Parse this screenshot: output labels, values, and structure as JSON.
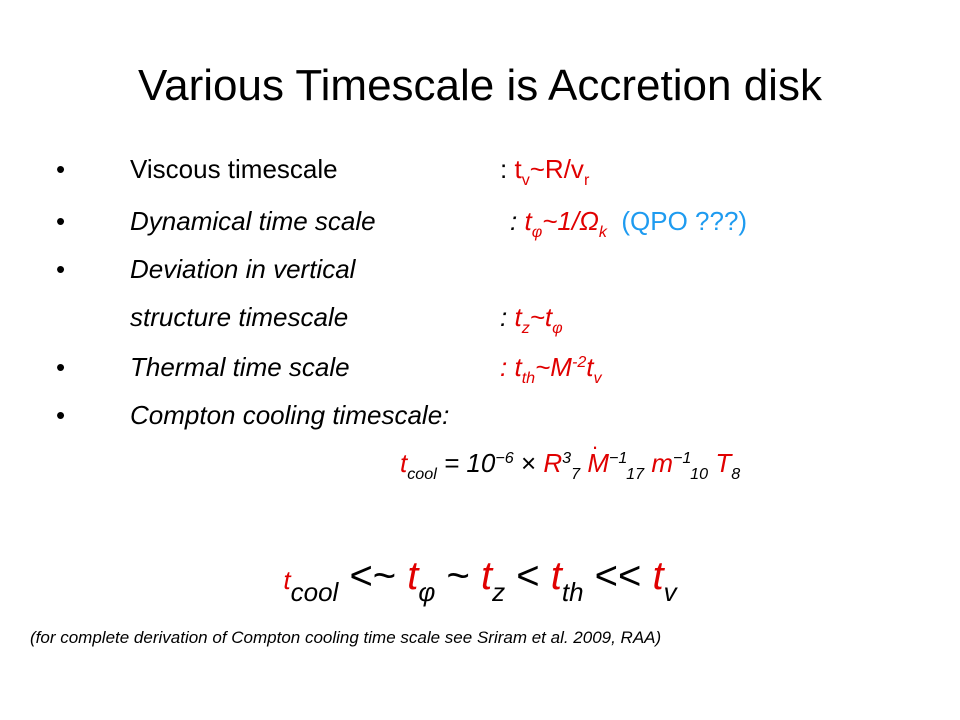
{
  "title": "Various Timescale is Accretion disk",
  "bullets": [
    {
      "label": "Viscous timescale",
      "value_prefix": ": ",
      "t": "t",
      "sub": "v",
      "rest": "~R/v",
      "rest_sub": "r"
    },
    {
      "label": "Dynamical time scale",
      "value_prefix": ": ",
      "t": "t",
      "sub": "φ",
      "rest": "~1/Ω",
      "rest_sub": "k",
      "extra": "(QPO ???)"
    },
    {
      "label": "Deviation in vertical"
    },
    {
      "label": "structure timescale",
      "value_prefix": ": ",
      "t": "t",
      "sub": "z",
      "rest": "~t",
      "rest_sub": "φ"
    },
    {
      "label": "Thermal time scale",
      "value_prefix": ": ",
      "t": "t",
      "sub": "th",
      "rest": "~M",
      "rest_sup": "-2",
      "tail": "t",
      "tail_sub": "v"
    },
    {
      "label": "Compton cooling timescale:"
    }
  ],
  "formula": {
    "lhs": "t",
    "lhs_sub": "cool",
    "eq": " = 10",
    "eq_sup": "−6",
    "times": " × ",
    "R": "R",
    "R_sup": "3",
    "R_sub": "7",
    "M": "M",
    "M_dot": "·",
    "M_sup": "−1",
    "M_sub": "17",
    "m": "m",
    "m_sup": "−1",
    "m_sub": "10",
    "T": "T",
    "T_sub": "8"
  },
  "relation": {
    "t": "t",
    "s1": "cool",
    "op1": "<~",
    "s2": "φ",
    "op2": "~",
    "s3": "z",
    "op3": "<",
    "s4": "th",
    "op4": "<<",
    "s5": "v"
  },
  "note": "(for complete derivation of Compton cooling time scale see Sriram et al. 2009, RAA)",
  "colors": {
    "accent_red": "#e00000",
    "accent_blue": "#1e9bf0",
    "text": "#000000"
  }
}
